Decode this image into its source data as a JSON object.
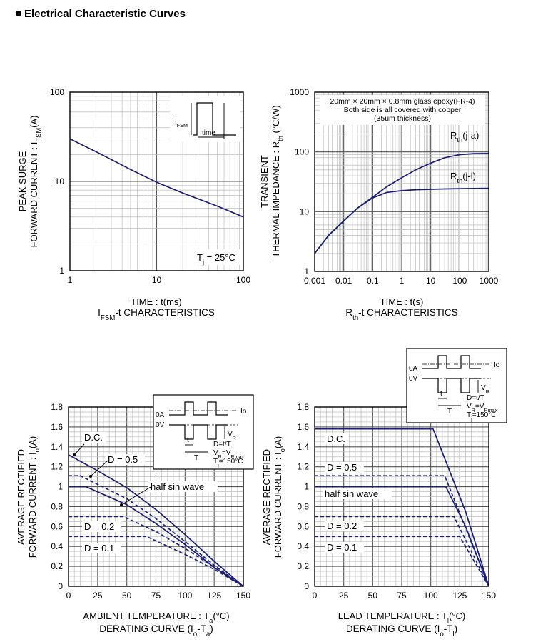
{
  "page_title": "Electrical Characteristic Curves",
  "colors": {
    "curve": "#1c1c7a",
    "grid_major": "#555555",
    "grid_minor": "#bdbdbd"
  },
  "chart_data": [
    {
      "id": "ifsm",
      "type": "line",
      "xscale": "log",
      "yscale": "log",
      "xlim": [
        1,
        100
      ],
      "ylim": [
        1,
        100
      ],
      "xticks": [
        "1",
        "10",
        "100"
      ],
      "yticks": [
        "1",
        "10",
        "100"
      ],
      "xlabel": "TIME : t(ms)",
      "caption": {
        "main": "I",
        "sub": "FSM",
        "rest": "-t CHARACTERISTICS"
      },
      "ylabel": {
        "line1": "PEAK SURGE",
        "line2_pre": "FORWARD CURRENT : I",
        "line2_sub": "FSM",
        "line2_post": "(A)"
      },
      "annotation": {
        "pre": "T",
        "sub": "j",
        "post": " = 25°C"
      },
      "inset": {
        "label_i": "I",
        "label_sub": "FSM",
        "label_time": "time"
      },
      "series": [
        {
          "x": [
            1,
            2,
            5,
            10,
            20,
            50,
            100
          ],
          "y": [
            30,
            21.5,
            13.6,
            9.8,
            7.4,
            5.3,
            4.0
          ]
        }
      ]
    },
    {
      "id": "rth",
      "type": "line",
      "xscale": "log",
      "yscale": "log",
      "xlim": [
        0.001,
        1000
      ],
      "ylim": [
        1,
        1000
      ],
      "xticks": [
        "0.001",
        "0.01",
        "0.1",
        "1",
        "10",
        "100",
        "1000"
      ],
      "yticks": [
        "1",
        "10",
        "100",
        "1000"
      ],
      "xlabel": "TIME : t(s)",
      "caption": {
        "main": "R",
        "sub": "th",
        "rest": "-t CHARACTERISTICS"
      },
      "ylabel": {
        "line1": "TRANSIENT",
        "line2_pre": "THERMAL IMPEDANCE : R",
        "line2_sub": "th",
        "line2_post": " (°C/W)"
      },
      "note": [
        "20mm × 20mm × 0.8mm glass epoxy(FR-4)",
        "Both side is all covered with copper",
        "(35um thickness)"
      ],
      "series": [
        {
          "label_main": "R",
          "label_sub": "th",
          "label_post": "(j-a)",
          "x": [
            0.001,
            0.003,
            0.01,
            0.03,
            0.1,
            0.3,
            1,
            3,
            10,
            30,
            100,
            300,
            1000
          ],
          "y": [
            2.0,
            4.0,
            7.0,
            11.5,
            17.5,
            26,
            37,
            50,
            65,
            80,
            90,
            93.5,
            94
          ]
        },
        {
          "label_main": "R",
          "label_sub": "th",
          "label_post": "(j-l)",
          "x": [
            0.001,
            0.003,
            0.01,
            0.03,
            0.1,
            0.3,
            1,
            3,
            10,
            30,
            100,
            300,
            1000
          ],
          "y": [
            2.0,
            4.0,
            7.0,
            11.5,
            17.0,
            21,
            22.5,
            23.3,
            23.7,
            24,
            24.3,
            24.5,
            24.6
          ]
        }
      ]
    },
    {
      "id": "derate-ambient",
      "type": "line",
      "xlim": [
        0,
        150
      ],
      "ylim": [
        0,
        1.8
      ],
      "xticks": [
        "0",
        "25",
        "50",
        "75",
        "100",
        "125",
        "150"
      ],
      "yticks": [
        "0",
        "0.2",
        "0.4",
        "0.6",
        "0.8",
        "1",
        "1.2",
        "1.4",
        "1.6",
        "1.8"
      ],
      "xlabel": {
        "pre": "AMBIENT TEMPERATURE : T",
        "sub": "a",
        "post": "(°C)"
      },
      "caption": {
        "pre": "DERATING CURVE (I",
        "sub1": "o",
        "mid": "-T",
        "sub2": "a",
        "post": ")"
      },
      "ylabel": {
        "line1": "AVERAGE RECTIFIED",
        "line2_pre": "FORWARD CURRENT : I",
        "line2_sub": "o",
        "line2_post": "(A)"
      },
      "series": [
        {
          "label": "D.C.",
          "dash": false,
          "x": [
            0,
            25,
            50,
            75,
            100,
            125,
            150
          ],
          "y": [
            1.32,
            1.16,
            0.99,
            0.77,
            0.52,
            0.25,
            0.0
          ]
        },
        {
          "label": "D = 0.5",
          "dash": true,
          "x": [
            0,
            10,
            50,
            75,
            100,
            125,
            150
          ],
          "y": [
            1.11,
            1.11,
            0.88,
            0.68,
            0.45,
            0.21,
            0.0
          ]
        },
        {
          "label": "half sin wave",
          "dash": false,
          "x": [
            0,
            15,
            50,
            75,
            100,
            125,
            150
          ],
          "y": [
            1.0,
            1.0,
            0.82,
            0.63,
            0.42,
            0.19,
            0.0
          ]
        },
        {
          "label": "D = 0.2",
          "dash": true,
          "x": [
            0,
            47,
            75,
            100,
            125,
            150
          ],
          "y": [
            0.7,
            0.7,
            0.55,
            0.38,
            0.19,
            0.0
          ]
        },
        {
          "label": "D = 0.1",
          "dash": true,
          "x": [
            0,
            67,
            100,
            125,
            150
          ],
          "y": [
            0.5,
            0.5,
            0.32,
            0.17,
            0.0
          ]
        }
      ],
      "inset": {
        "io": "Io",
        "zeroA": "0A",
        "zeroV": "0V",
        "t": "t",
        "T": "T",
        "vr_pre": "V",
        "vr_sub": "R",
        "eq1": "D=t/T",
        "eq2_pre": "V",
        "eq2_sub": "R",
        "eq2_mid": "=V",
        "eq2_sub2": "Rmax",
        "eq3_pre": "T",
        "eq3_sub": "j",
        "eq3_post": "=150°C"
      }
    },
    {
      "id": "derate-lead",
      "type": "line",
      "xlim": [
        0,
        150
      ],
      "ylim": [
        0,
        1.8
      ],
      "xticks": [
        "0",
        "25",
        "50",
        "75",
        "100",
        "125",
        "150"
      ],
      "yticks": [
        "0",
        "0.2",
        "0.4",
        "0.6",
        "0.8",
        "1",
        "1.2",
        "1.4",
        "1.6",
        "1.8"
      ],
      "xlabel": {
        "pre": "LEAD TEMPERATURE : T",
        "sub": "l",
        "post": "(°C)"
      },
      "caption": {
        "pre": "DERATING CURVE (I",
        "sub1": "o",
        "mid": "-T",
        "sub2": "l",
        "post": ")"
      },
      "ylabel": {
        "line1": "AVERAGE RECTIFIED",
        "line2_pre": "FORWARD CURRENT : I",
        "line2_sub": "o",
        "line2_post": "(A)"
      },
      "series": [
        {
          "label": "D.C.",
          "dash": false,
          "x": [
            0,
            102,
            130,
            150
          ],
          "y": [
            1.58,
            1.58,
            0.75,
            0.0
          ]
        },
        {
          "label": "D = 0.5",
          "dash": true,
          "x": [
            0,
            112,
            150
          ],
          "y": [
            1.11,
            1.11,
            0.0
          ]
        },
        {
          "label": "half sin wave",
          "dash": false,
          "x": [
            0,
            113,
            130,
            150
          ],
          "y": [
            1.0,
            1.0,
            0.6,
            0.0
          ]
        },
        {
          "label": "D = 0.2",
          "dash": true,
          "x": [
            0,
            120,
            150
          ],
          "y": [
            0.7,
            0.7,
            0.0
          ]
        },
        {
          "label": "D = 0.1",
          "dash": true,
          "x": [
            0,
            125,
            150
          ],
          "y": [
            0.5,
            0.5,
            0.0
          ]
        }
      ],
      "inset": {
        "io": "Io",
        "zeroA": "0A",
        "zeroV": "0V",
        "t": "t",
        "T": "T",
        "vr_pre": "V",
        "vr_sub": "R",
        "eq1": "D=t/T",
        "eq2_pre": "V",
        "eq2_sub": "R",
        "eq2_mid": "=V",
        "eq2_sub2": "Rmax",
        "eq3_pre": "T",
        "eq3_sub": "j",
        "eq3_post": "=150°C"
      }
    }
  ]
}
